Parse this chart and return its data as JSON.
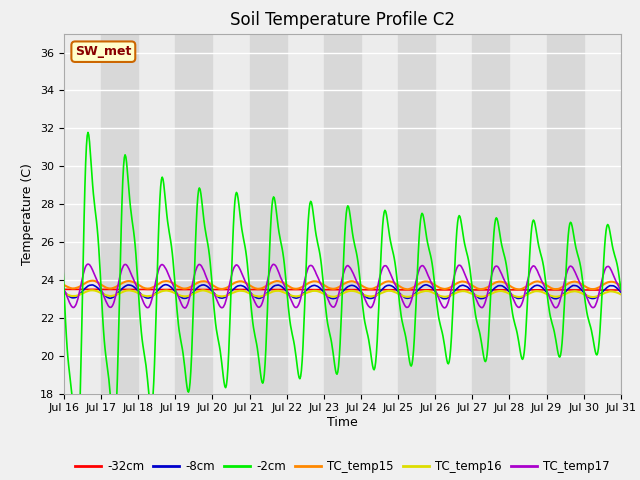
{
  "title": "Soil Temperature Profile C2",
  "xlabel": "Time",
  "ylabel": "Temperature (C)",
  "ylim": [
    18,
    37
  ],
  "yticks": [
    18,
    20,
    22,
    24,
    26,
    28,
    30,
    32,
    34,
    36
  ],
  "xtick_labels": [
    "Jul 16",
    "Jul 17",
    "Jul 18",
    "Jul 19",
    "Jul 20",
    "Jul 21",
    "Jul 22",
    "Jul 23",
    "Jul 24",
    "Jul 25",
    "Jul 26",
    "Jul 27",
    "Jul 28",
    "Jul 29",
    "Jul 30",
    "Jul 31"
  ],
  "series": {
    "-32cm": {
      "color": "#ff0000",
      "lw": 1.2
    },
    "-8cm": {
      "color": "#0000cc",
      "lw": 1.2
    },
    "-2cm": {
      "color": "#00ee00",
      "lw": 1.2
    },
    "TC_temp15": {
      "color": "#ff8800",
      "lw": 1.5
    },
    "TC_temp16": {
      "color": "#dddd00",
      "lw": 1.5
    },
    "TC_temp17": {
      "color": "#aa00cc",
      "lw": 1.2
    }
  },
  "legend_label": "SW_met",
  "legend_bg": "#ffffcc",
  "legend_border": "#cc6600",
  "bg_color": "#f0f0f0",
  "plot_bg_light": "#ececec",
  "plot_bg_dark": "#d8d8d8",
  "grid_color": "#ffffff",
  "title_fontsize": 12,
  "axis_fontsize": 9,
  "tick_fontsize": 8
}
